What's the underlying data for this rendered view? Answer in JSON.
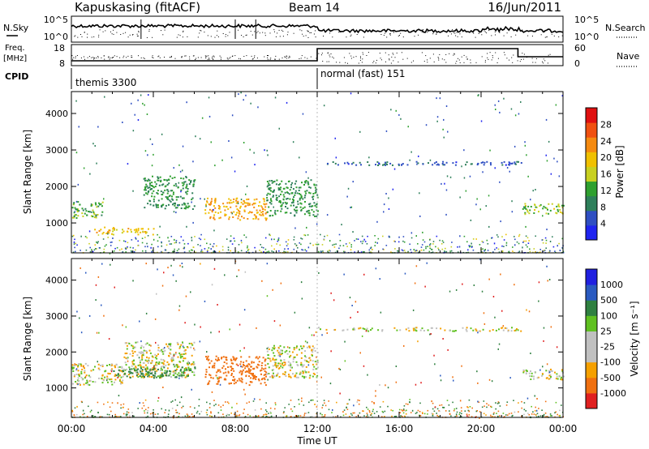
{
  "header": {
    "station": "Kapuskasing (fitACF)",
    "beam": "Beam 14",
    "date": "16/Jun/2011"
  },
  "strip": {
    "nsky_label": "N.Sky",
    "nsearch_label": "N.Search",
    "pow_top": "10^5",
    "pow_bottom": "10^0",
    "freq_label_1": "Freq.",
    "freq_label_2": "[MHz]",
    "freq_top": "18",
    "freq_bottom": "8",
    "nave_top": "60",
    "nave_bottom": "0",
    "nave_label": "Nave",
    "cpid_label": "CPID",
    "cpid_modes": [
      {
        "name": "themis 3300",
        "start_hour": 0
      },
      {
        "name": "normal (fast) 151",
        "start_hour": 12
      }
    ]
  },
  "colors": {
    "power": [
      "#1f24f0",
      "#2f4fc2",
      "#2e7f5a",
      "#2fa02f",
      "#c8d020",
      "#f0c000",
      "#f58a10",
      "#f05010",
      "#e01010"
    ],
    "velocity": [
      "#2020e0",
      "#2a5ac0",
      "#2f8040",
      "#5fc020",
      "#c0c0c0",
      "#c0c0c0",
      "#f5a000",
      "#f07010",
      "#e02020"
    ]
  },
  "chart_data": [
    {
      "type": "heatmap",
      "panel": "power",
      "ylabel": "Slant Range [km]",
      "xlabel": "Time UT",
      "x_ticks": [
        "00:00",
        "04:00",
        "08:00",
        "12:00",
        "16:00",
        "20:00",
        "00:00"
      ],
      "xlim_hours": [
        0,
        24
      ],
      "y_ticks": [
        1000,
        2000,
        3000,
        4000
      ],
      "ylim": [
        180,
        4600
      ],
      "colorbar_label": "Power [dB]",
      "colorbar_ticks": [
        "28",
        "24",
        "20",
        "16",
        "12",
        "8",
        "4"
      ],
      "colorbar_range": [
        0,
        30
      ],
      "echo_bands": [
        {
          "t0": 0.0,
          "t1": 1.5,
          "r0": 1150,
          "r1": 1600,
          "level": 12
        },
        {
          "t0": 1.0,
          "t1": 4.0,
          "r0": 700,
          "r1": 900,
          "level": 18
        },
        {
          "t0": 3.5,
          "t1": 6.0,
          "r0": 1400,
          "r1": 2300,
          "level": 10
        },
        {
          "t0": 6.5,
          "t1": 9.5,
          "r0": 1100,
          "r1": 1700,
          "level": 20
        },
        {
          "t0": 9.5,
          "t1": 12.0,
          "r0": 1200,
          "r1": 2200,
          "level": 10
        },
        {
          "t0": 12.0,
          "t1": 22.0,
          "r0": 2600,
          "r1": 2700,
          "level": 6
        },
        {
          "t0": 22.0,
          "t1": 24.0,
          "r0": 1250,
          "r1": 1550,
          "level": 14
        }
      ]
    },
    {
      "type": "heatmap",
      "panel": "velocity",
      "ylabel": "Slant Range [km]",
      "xlabel": "Time UT",
      "x_ticks": [
        "00:00",
        "04:00",
        "08:00",
        "12:00",
        "16:00",
        "20:00",
        "00:00"
      ],
      "xlim_hours": [
        0,
        24
      ],
      "y_ticks": [
        1000,
        2000,
        3000,
        4000
      ],
      "ylim": [
        180,
        4600
      ],
      "colorbar_label": "Velocity [m s⁻¹]",
      "colorbar_ticks": [
        "1000",
        "500",
        "100",
        "25",
        "-25",
        "-100",
        "-500",
        "-1000"
      ],
      "echo_bands": [
        {
          "t0": 0.0,
          "t1": 2.5,
          "r0": 1100,
          "r1": 1700,
          "velocity": 0
        },
        {
          "t0": 2.5,
          "t1": 6.0,
          "r0": 1300,
          "r1": 2300,
          "velocity": 0
        },
        {
          "t0": 2.0,
          "t1": 6.0,
          "r0": 1300,
          "r1": 1600,
          "velocity": 150
        },
        {
          "t0": 6.5,
          "t1": 9.5,
          "r0": 1100,
          "r1": 1900,
          "velocity": -300
        },
        {
          "t0": 9.5,
          "t1": 12.0,
          "r0": 1300,
          "r1": 2200,
          "velocity": 0
        },
        {
          "t0": 12.0,
          "t1": 22.0,
          "r0": 2600,
          "r1": 2700,
          "velocity": 0
        },
        {
          "t0": 22.0,
          "t1": 24.0,
          "r0": 1250,
          "r1": 1550,
          "velocity": 0
        }
      ]
    }
  ]
}
